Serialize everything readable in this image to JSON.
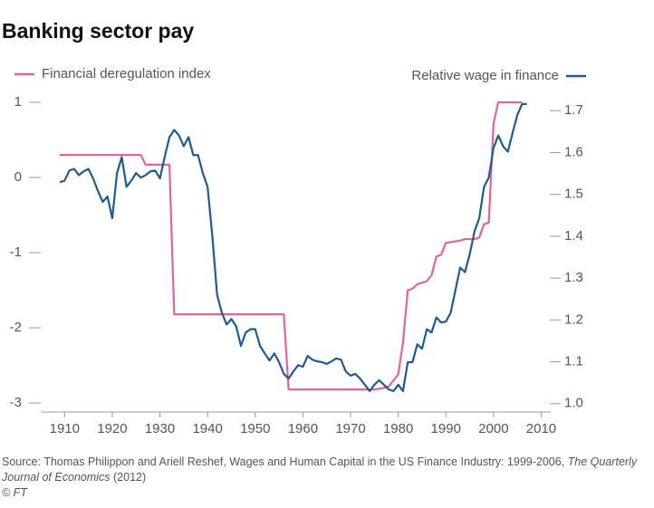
{
  "chart_data": {
    "type": "line",
    "title": "Banking sector pay",
    "source": "Source: Thomas Philippon and Ariell Reshef, Wages and Human Capital in the US Finance Industry: 1999-2006,",
    "source_journal": "The Quarterly Journal of Economics",
    "source_year": "(2012)",
    "credit": "© FT",
    "x": [
      1909,
      1910,
      1911,
      1912,
      1913,
      1914,
      1915,
      1916,
      1917,
      1918,
      1919,
      1920,
      1921,
      1922,
      1923,
      1924,
      1925,
      1926,
      1927,
      1928,
      1929,
      1930,
      1931,
      1932,
      1933,
      1934,
      1935,
      1936,
      1937,
      1938,
      1939,
      1940,
      1941,
      1942,
      1943,
      1944,
      1945,
      1946,
      1947,
      1948,
      1949,
      1950,
      1951,
      1952,
      1953,
      1954,
      1955,
      1956,
      1957,
      1958,
      1959,
      1960,
      1961,
      1962,
      1963,
      1964,
      1965,
      1966,
      1967,
      1968,
      1969,
      1970,
      1971,
      1972,
      1973,
      1974,
      1975,
      1976,
      1977,
      1978,
      1979,
      1980,
      1981,
      1982,
      1983,
      1984,
      1985,
      1986,
      1987,
      1988,
      1989,
      1990,
      1991,
      1992,
      1993,
      1994,
      1995,
      1996,
      1997,
      1998,
      1999,
      2000,
      2001,
      2002,
      2003,
      2004,
      2005,
      2006,
      2007
    ],
    "series": [
      {
        "name": "Financial deregulation index",
        "color": "#e0639b",
        "axis": "y",
        "values": [
          0.3,
          0.3,
          0.3,
          0.3,
          0.3,
          0.3,
          0.3,
          0.3,
          0.3,
          0.3,
          0.3,
          0.3,
          0.3,
          0.3,
          0.3,
          0.3,
          0.3,
          0.3,
          0.17,
          0.17,
          0.17,
          0.17,
          0.17,
          0.17,
          -1.82,
          -1.82,
          -1.82,
          -1.82,
          -1.82,
          -1.82,
          -1.82,
          -1.82,
          -1.82,
          -1.82,
          -1.82,
          -1.82,
          -1.82,
          -1.82,
          -1.82,
          -1.82,
          -1.82,
          -1.82,
          -1.82,
          -1.82,
          -1.82,
          -1.82,
          -1.82,
          -1.82,
          -2.82,
          -2.82,
          -2.82,
          -2.82,
          -2.82,
          -2.82,
          -2.82,
          -2.82,
          -2.82,
          -2.82,
          -2.82,
          -2.82,
          -2.82,
          -2.82,
          -2.82,
          -2.82,
          -2.82,
          -2.82,
          -2.82,
          -2.81,
          -2.8,
          -2.78,
          -2.7,
          -2.62,
          -2.2,
          -1.5,
          -1.48,
          -1.42,
          -1.4,
          -1.38,
          -1.3,
          -1.05,
          -1.03,
          -0.87,
          -0.86,
          -0.85,
          -0.84,
          -0.82,
          -0.82,
          -0.82,
          -0.8,
          -0.62,
          -0.6,
          0.72,
          1.0,
          1.0,
          1.0,
          1.0,
          1.0,
          1.0,
          null
        ]
      },
      {
        "name": "Relative wage in finance",
        "color": "#1d5a97",
        "axis": "y2",
        "values": [
          1.529,
          1.533,
          1.557,
          1.561,
          1.546,
          1.555,
          1.561,
          1.538,
          1.508,
          1.482,
          1.495,
          1.443,
          1.551,
          1.589,
          1.518,
          1.533,
          1.551,
          1.54,
          1.546,
          1.555,
          1.557,
          1.538,
          1.589,
          1.637,
          1.654,
          1.641,
          1.615,
          1.637,
          1.594,
          1.594,
          1.551,
          1.518,
          1.4,
          1.26,
          1.217,
          1.189,
          1.202,
          1.185,
          1.138,
          1.17,
          1.178,
          1.178,
          1.138,
          1.12,
          1.103,
          1.12,
          1.099,
          1.071,
          1.06,
          1.077,
          1.092,
          1.088,
          1.114,
          1.105,
          1.101,
          1.099,
          1.095,
          1.101,
          1.108,
          1.105,
          1.077,
          1.067,
          1.071,
          1.06,
          1.045,
          1.03,
          1.045,
          1.056,
          1.045,
          1.034,
          1.03,
          1.045,
          1.03,
          1.099,
          1.099,
          1.142,
          1.131,
          1.178,
          1.17,
          1.206,
          1.194,
          1.196,
          1.217,
          1.271,
          1.325,
          1.314,
          1.357,
          1.411,
          1.443,
          1.518,
          1.54,
          1.611,
          1.641,
          1.615,
          1.602,
          1.647,
          1.69,
          1.716,
          1.716
        ]
      }
    ],
    "xlim": [
      1905,
      2012
    ],
    "xticks": [
      1910,
      1920,
      1930,
      1940,
      1950,
      1960,
      1970,
      1980,
      1990,
      2000,
      2010
    ],
    "ylim": [
      -3.12,
      1
    ],
    "yticks": [
      1,
      0,
      -1,
      -2,
      -3
    ],
    "y2lim": [
      0.98,
      1.72
    ],
    "y2ticks": [
      1.7,
      1.6,
      1.5,
      1.4,
      1.3,
      1.2,
      1.1,
      {
        "value": 1.0,
        "label": "1.0"
      }
    ],
    "grid": false
  }
}
